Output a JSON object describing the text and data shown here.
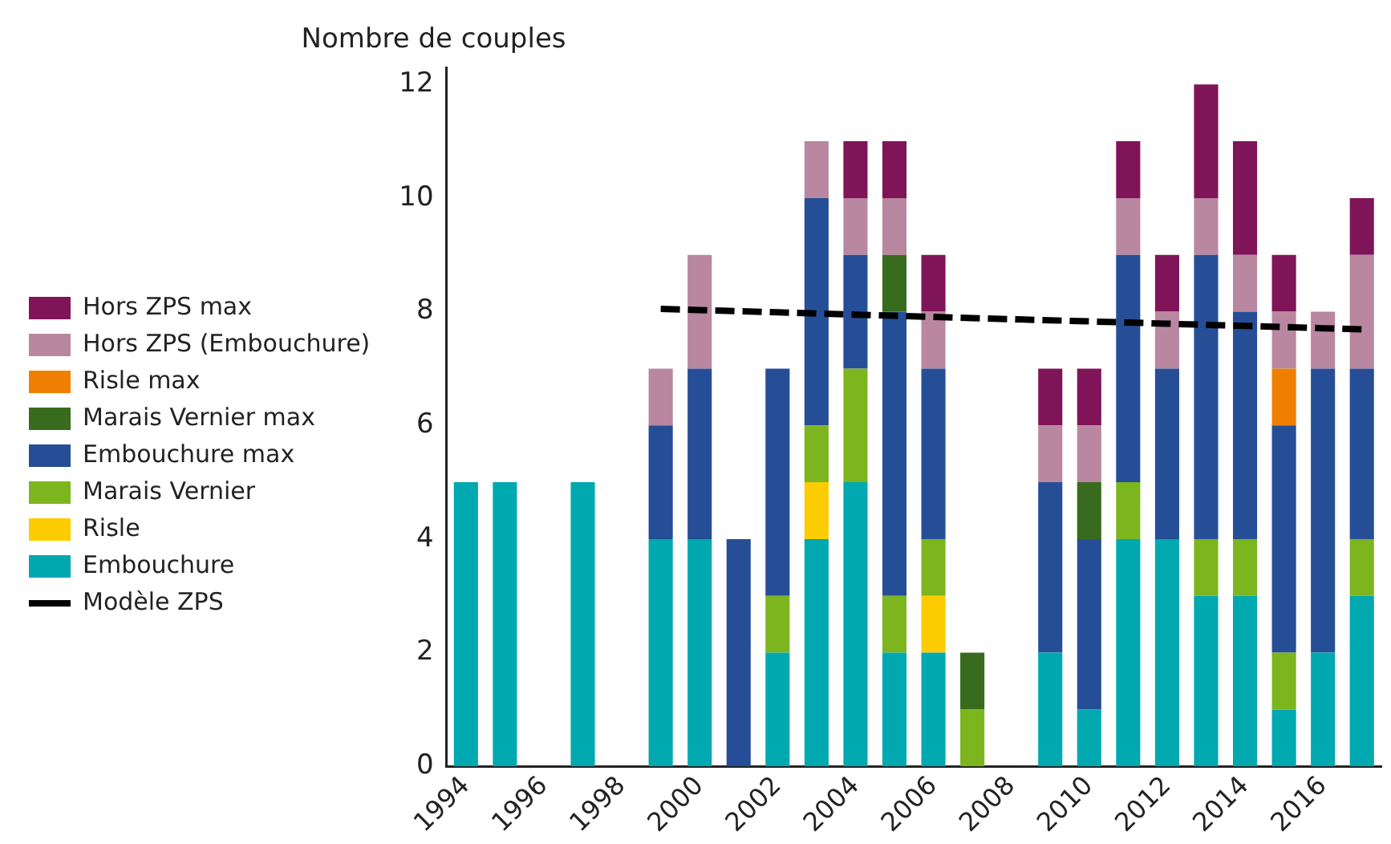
{
  "chart_data": {
    "type": "bar",
    "stacked": true,
    "ylabel": "Nombre de couples",
    "categories": [
      "1994",
      null,
      "1996",
      null,
      "1998",
      null,
      "2000",
      null,
      "2002",
      null,
      "2004",
      null,
      "2006",
      null,
      "2008",
      null,
      "2010",
      null,
      "2012",
      null,
      "2014",
      null,
      "2016",
      null
    ],
    "series": [
      {
        "name": "Modèle ZPS",
        "type": "line",
        "color": "#000000",
        "line_style": "dashed",
        "marker": "none",
        "values": [
          null,
          null,
          null,
          null,
          null,
          8.05,
          8.03,
          8.01,
          7.99,
          7.97,
          7.95,
          7.93,
          7.91,
          7.89,
          7.87,
          7.85,
          7.83,
          7.81,
          7.79,
          7.77,
          7.75,
          7.73,
          7.71,
          7.69
        ]
      },
      {
        "name": "Embouchure",
        "color": "#00a8b0",
        "values": [
          5,
          5,
          0,
          5,
          0,
          4,
          4,
          0,
          2,
          4,
          5,
          2,
          2,
          0,
          0,
          2,
          1,
          4,
          4,
          3,
          3,
          1,
          2,
          3
        ]
      },
      {
        "name": "Risle",
        "color": "#fccc00",
        "values": [
          0,
          0,
          0,
          0,
          0,
          0,
          0,
          0,
          0,
          1,
          0,
          0,
          1,
          0,
          0,
          0,
          0,
          0,
          0,
          0,
          0,
          0,
          0,
          0
        ]
      },
      {
        "name": "Marais Vernier",
        "color": "#7db51e",
        "values": [
          0,
          0,
          0,
          0,
          0,
          0,
          0,
          0,
          1,
          1,
          2,
          1,
          1,
          1,
          0,
          0,
          0,
          1,
          0,
          1,
          1,
          1,
          0,
          1
        ]
      },
      {
        "name": "Embouchure max",
        "color": "#264e97",
        "values": [
          0,
          0,
          0,
          0,
          0,
          2,
          3,
          4,
          4,
          4,
          2,
          5,
          3,
          0,
          0,
          3,
          3,
          4,
          3,
          5,
          4,
          4,
          5,
          3
        ]
      },
      {
        "name": "Marais Vernier max",
        "color": "#386b1e",
        "values": [
          0,
          0,
          0,
          0,
          0,
          0,
          0,
          0,
          0,
          0,
          0,
          1,
          0,
          1,
          0,
          0,
          1,
          0,
          0,
          0,
          0,
          0,
          0,
          0
        ]
      },
      {
        "name": "Risle max",
        "color": "#ef7f00",
        "values": [
          0,
          0,
          0,
          0,
          0,
          0,
          0,
          0,
          0,
          0,
          0,
          0,
          0,
          0,
          0,
          0,
          0,
          0,
          0,
          0,
          0,
          1,
          0,
          0
        ]
      },
      {
        "name": "Hors ZPS (Embouchure)",
        "color": "#b9879f",
        "values": [
          0,
          0,
          0,
          0,
          0,
          1,
          2,
          0,
          0,
          1,
          1,
          1,
          1,
          0,
          0,
          1,
          1,
          1,
          1,
          1,
          1,
          1,
          1,
          2
        ]
      },
      {
        "name": "Hors ZPS max",
        "color": "#7f1558",
        "values": [
          0,
          0,
          0,
          0,
          0,
          0,
          0,
          0,
          0,
          0,
          1,
          1,
          1,
          0,
          0,
          1,
          1,
          1,
          1,
          2,
          2,
          1,
          0,
          1
        ]
      }
    ],
    "ylim": [
      0,
      12.3
    ],
    "yticks": [
      0,
      2,
      4,
      6,
      8,
      10,
      12
    ],
    "grid": false,
    "legend": "left"
  }
}
